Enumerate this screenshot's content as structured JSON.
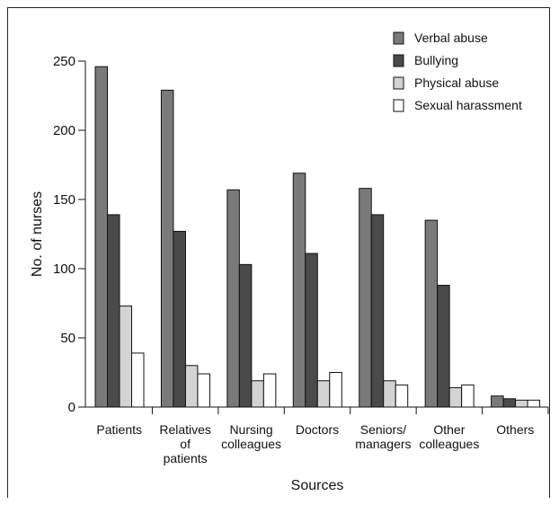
{
  "chart_data": {
    "type": "bar",
    "title": "",
    "xlabel": "Sources",
    "ylabel": "No. of nurses",
    "ylim": [
      0,
      250
    ],
    "yticks": [
      0,
      50,
      100,
      150,
      200,
      250
    ],
    "grid": false,
    "legend_position": "top-right",
    "categories": [
      [
        "Patients"
      ],
      [
        "Relatives",
        "of",
        "patients"
      ],
      [
        "Nursing",
        "colleagues"
      ],
      [
        "Doctors"
      ],
      [
        "Seniors/",
        "managers"
      ],
      [
        "Other",
        "colleagues"
      ],
      [
        "Others"
      ]
    ],
    "series": [
      {
        "name": "Verbal abuse",
        "color": "#7a7a7a",
        "values": [
          246,
          229,
          157,
          169,
          158,
          135,
          8
        ]
      },
      {
        "name": "Bullying",
        "color": "#4a4a4a",
        "values": [
          139,
          127,
          103,
          111,
          139,
          88,
          6
        ]
      },
      {
        "name": "Physical abuse",
        "color": "#d3d3d3",
        "values": [
          73,
          30,
          19,
          19,
          19,
          14,
          5
        ]
      },
      {
        "name": "Sexual harassment",
        "color": "#ffffff",
        "values": [
          39,
          24,
          24,
          25,
          16,
          16,
          5
        ]
      }
    ]
  }
}
